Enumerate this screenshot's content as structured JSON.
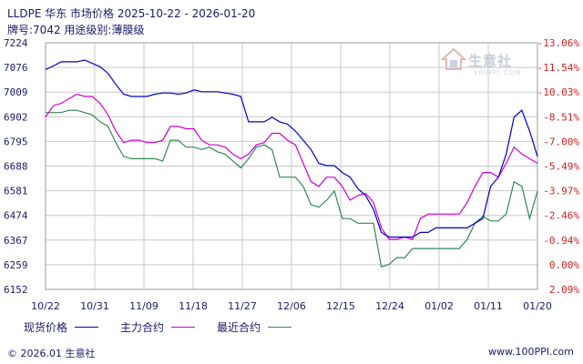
{
  "header": {
    "title": "LLDPE 华东 市场价格 2025-10-22 - 2026-01-20",
    "subtitle": "牌号:7042 用途级别:薄膜级"
  },
  "watermark": {
    "text": "生意社",
    "sub": "100PPI.COM"
  },
  "footer": {
    "left": "© 2026.01 生意社",
    "right": "www.100PPI.com"
  },
  "colors": {
    "spot": "#0000cc",
    "main": "#cc00cc",
    "recent": "#338855",
    "grid": "#c8c8c8"
  },
  "chart_data": {
    "type": "line",
    "x": [
      "10/22",
      "10/23",
      "10/24",
      "10/27",
      "10/28",
      "10/29",
      "10/30",
      "10/31",
      "11/03",
      "11/04",
      "11/05",
      "11/06",
      "11/07",
      "11/10",
      "11/11",
      "11/12",
      "11/13",
      "11/14",
      "11/17",
      "11/18",
      "11/19",
      "11/20",
      "11/21",
      "11/24",
      "11/25",
      "11/26",
      "11/27",
      "11/28",
      "12/01",
      "12/02",
      "12/03",
      "12/04",
      "12/05",
      "12/08",
      "12/09",
      "12/10",
      "12/11",
      "12/12",
      "12/15",
      "12/16",
      "12/17",
      "12/18",
      "12/19",
      "12/22",
      "12/23",
      "12/24",
      "12/25",
      "12/26",
      "12/29",
      "12/30",
      "12/31",
      "01/02",
      "01/05",
      "01/06",
      "01/07",
      "01/08",
      "01/09",
      "01/12",
      "01/13",
      "01/14",
      "01/15",
      "01/16",
      "01/19",
      "01/20"
    ],
    "x_ticks": [
      "10/22",
      "10/31",
      "11/09",
      "11/18",
      "11/27",
      "12/06",
      "12/15",
      "12/24",
      "01/02",
      "01/11",
      "01/20"
    ],
    "y_ticks": [
      6152,
      6259,
      6367,
      6474,
      6581,
      6688,
      6795,
      6902,
      7009,
      7076,
      7224
    ],
    "y_right_ticks": [
      "2.09%",
      "0.00%",
      "-0.94%",
      "-2.46%",
      "-3.97%",
      "-5.49%",
      "-7.00%",
      "-8.51%",
      "-10.03%",
      "-11.54%",
      "-13.06%"
    ],
    "legend": "bottom",
    "series": [
      {
        "name": "现货价格",
        "values": [
          7070,
          7085,
          7110,
          7110,
          7110,
          7120,
          7100,
          7080,
          7060,
          7030,
          7000,
          6990,
          6990,
          6990,
          7000,
          7005,
          7005,
          7000,
          7005,
          7015,
          7010,
          7010,
          7010,
          7005,
          7000,
          6990,
          6880,
          6880,
          6880,
          6900,
          6880,
          6870,
          6840,
          6800,
          6760,
          6700,
          6690,
          6690,
          6660,
          6640,
          6590,
          6560,
          6500,
          6400,
          6380,
          6380,
          6380,
          6380,
          6400,
          6400,
          6420,
          6420,
          6420,
          6420,
          6420,
          6440,
          6460,
          6600,
          6640,
          6740,
          6900,
          6930,
          6840,
          6730
        ]
      },
      {
        "name": "主力合约",
        "values": [
          6900,
          6950,
          6960,
          6980,
          7000,
          6990,
          6990,
          6960,
          6910,
          6840,
          6790,
          6800,
          6800,
          6790,
          6790,
          6800,
          6860,
          6860,
          6850,
          6850,
          6800,
          6780,
          6780,
          6770,
          6740,
          6720,
          6740,
          6780,
          6790,
          6830,
          6830,
          6800,
          6780,
          6700,
          6620,
          6600,
          6640,
          6640,
          6600,
          6540,
          6560,
          6570,
          6530,
          6420,
          6370,
          6370,
          6380,
          6370,
          6460,
          6480,
          6480,
          6480,
          6480,
          6480,
          6530,
          6600,
          6660,
          6660,
          6640,
          6700,
          6770,
          6740,
          6720,
          6700
        ]
      },
      {
        "name": "最近合约",
        "values": [
          6920,
          6920,
          6920,
          6930,
          6930,
          6920,
          6910,
          6880,
          6860,
          6790,
          6730,
          6720,
          6720,
          6720,
          6720,
          6710,
          6800,
          6800,
          6770,
          6770,
          6760,
          6770,
          6750,
          6740,
          6710,
          6680,
          6720,
          6770,
          6780,
          6760,
          6640,
          6640,
          6640,
          6600,
          6520,
          6510,
          6540,
          6580,
          6460,
          6460,
          6440,
          6440,
          6440,
          6250,
          6260,
          6290,
          6290,
          6330,
          6330,
          6330,
          6330,
          6330,
          6330,
          6330,
          6370,
          6440,
          6470,
          6450,
          6450,
          6480,
          6620,
          6600,
          6460,
          6580
        ]
      }
    ]
  },
  "legend_items": [
    {
      "label": "现货价格",
      "color_key": "spot"
    },
    {
      "label": "主力合约",
      "color_key": "main"
    },
    {
      "label": "最近合约",
      "color_key": "recent"
    }
  ]
}
